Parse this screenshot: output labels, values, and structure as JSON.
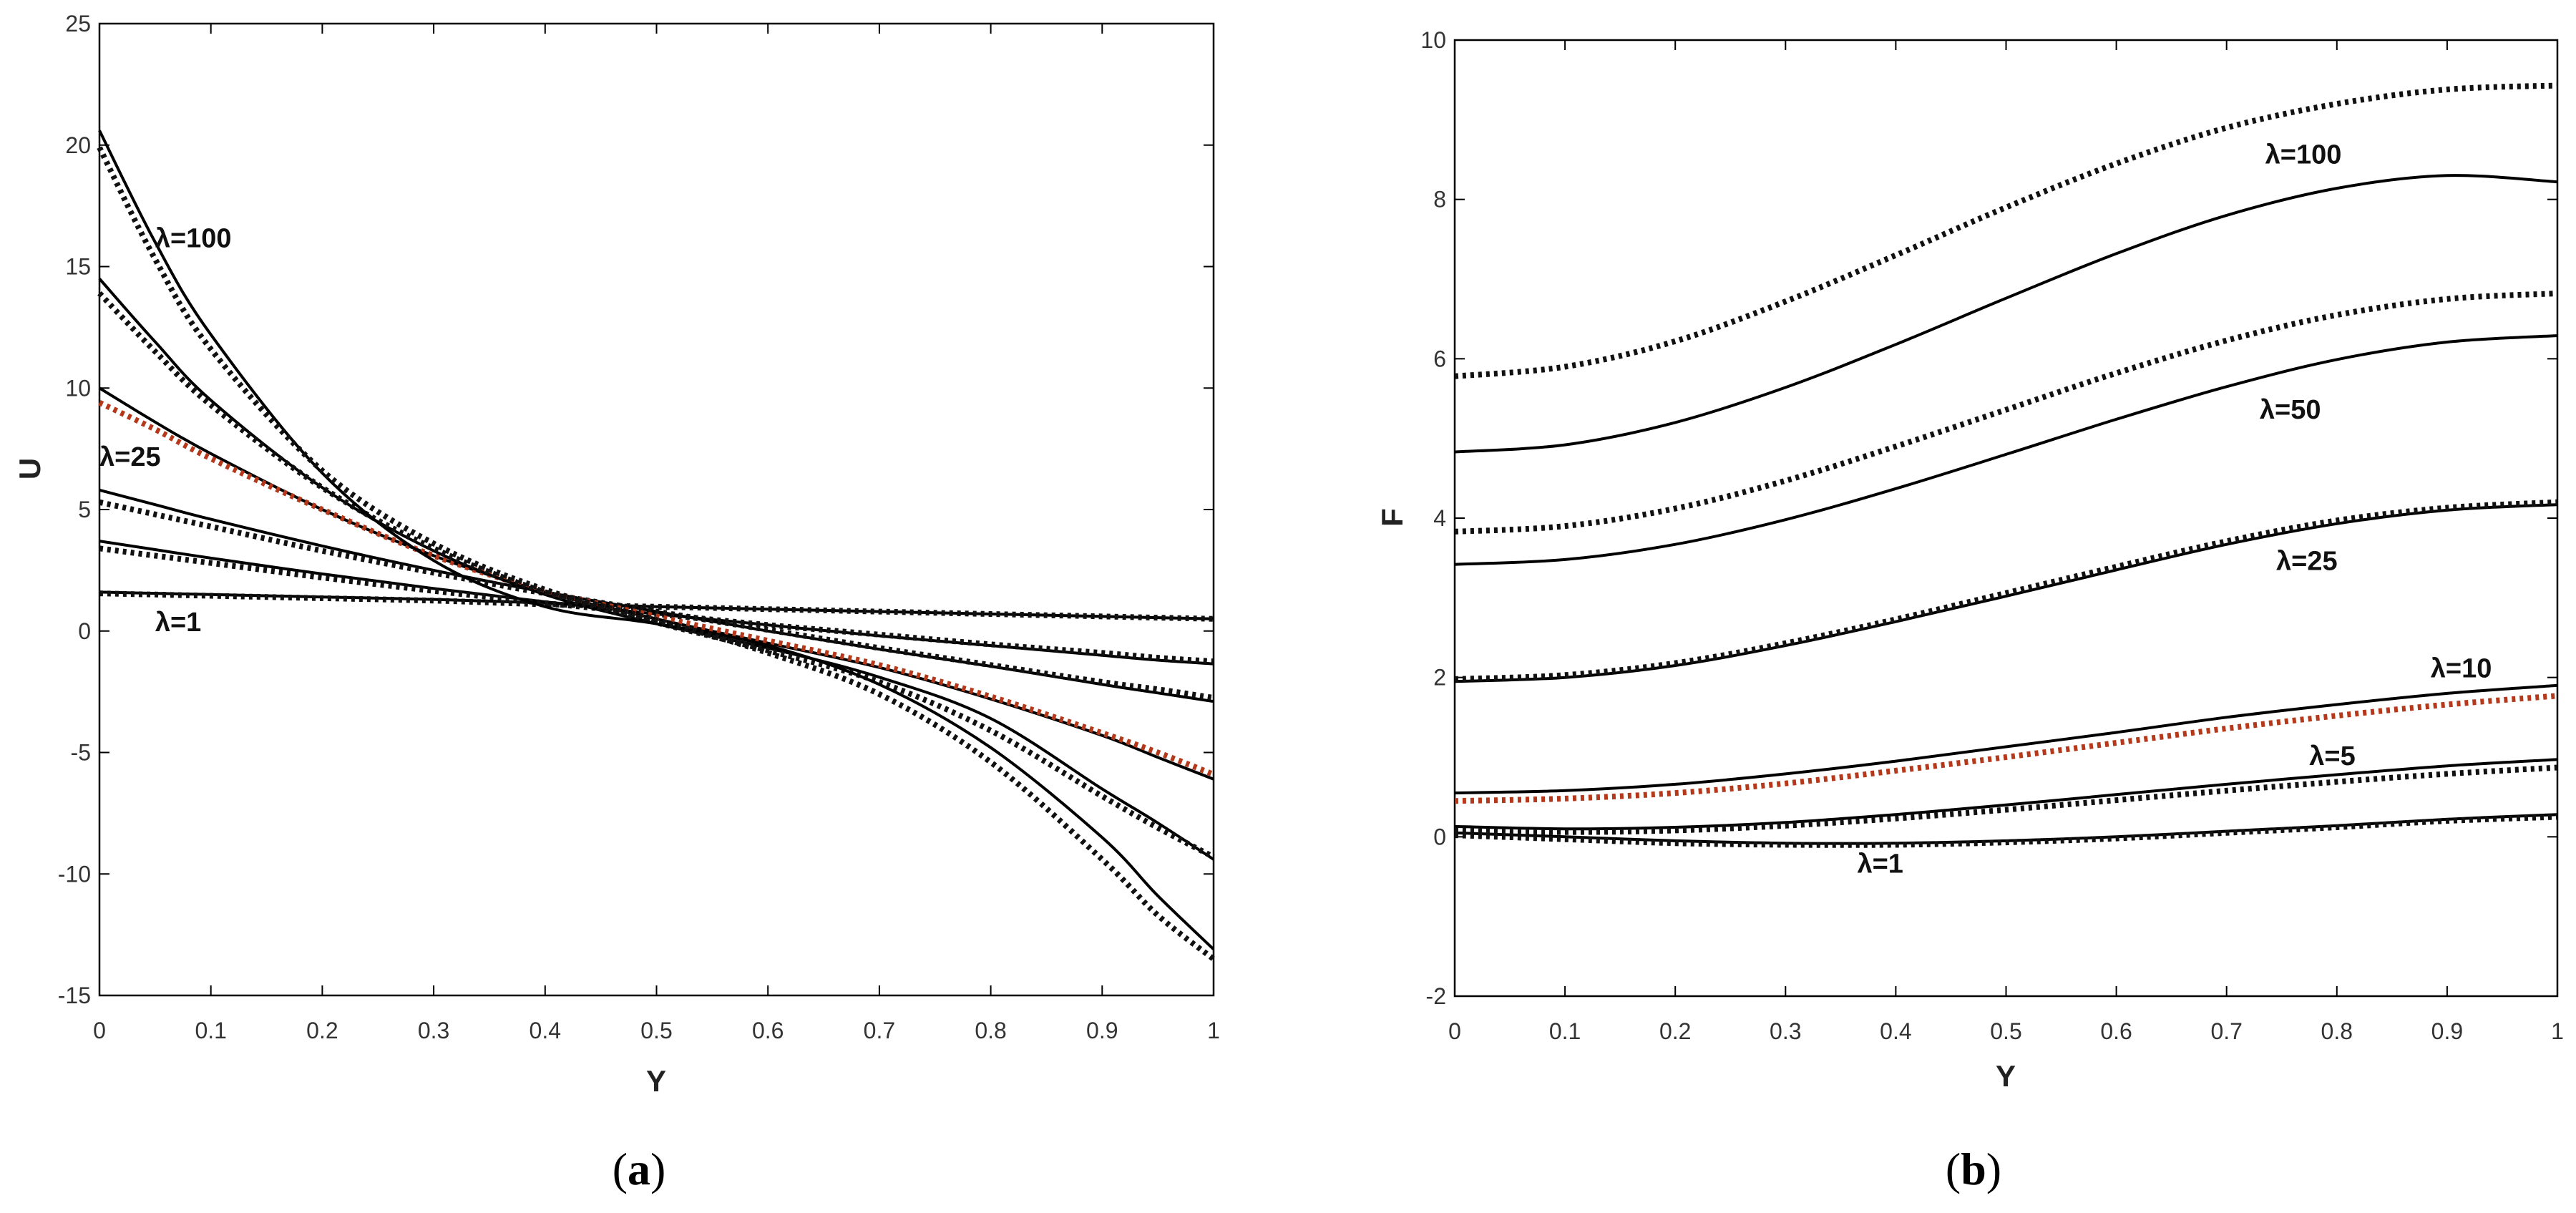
{
  "chart_data": [
    {
      "type": "line",
      "panel_label": [
        "(",
        "a",
        ")"
      ],
      "xlabel": "Y",
      "ylabel": "U",
      "xlim": [
        0,
        1
      ],
      "ylim": [
        -15,
        25
      ],
      "xticks": [
        "0",
        "0.1",
        "0.2",
        "0.3",
        "0.4",
        "0.5",
        "0.6",
        "0.7",
        "0.8",
        "0.9",
        "1"
      ],
      "yticks": [
        "-15",
        "-10",
        "-5",
        "0",
        "5",
        "10",
        "15",
        "20",
        "25"
      ],
      "grid": false,
      "colors": {
        "solid": "#000000",
        "dotted": "#111111",
        "highlight": "#b5381a"
      },
      "annotations": [
        {
          "text": "λ=100",
          "x": 0.05,
          "y": 15.8
        },
        {
          "text": "λ=25",
          "x": 0.0,
          "y": 6.8
        },
        {
          "text": "λ=1",
          "x": 0.05,
          "y": 0.0
        }
      ],
      "series": [
        {
          "style": "solid",
          "x": [
            0,
            0.05,
            0.1,
            0.2,
            0.3,
            0.4,
            0.5,
            0.6,
            0.7,
            0.8,
            0.9,
            0.95,
            1
          ],
          "y": [
            1.6,
            1.55,
            1.5,
            1.4,
            1.3,
            1.15,
            1.0,
            0.9,
            0.8,
            0.7,
            0.6,
            0.55,
            0.5
          ]
        },
        {
          "style": "dotted",
          "x": [
            0,
            0.05,
            0.1,
            0.2,
            0.3,
            0.4,
            0.5,
            0.6,
            0.7,
            0.8,
            0.9,
            0.95,
            1
          ],
          "y": [
            1.55,
            1.5,
            1.45,
            1.35,
            1.25,
            1.1,
            1.0,
            0.9,
            0.8,
            0.7,
            0.6,
            0.55,
            0.5
          ]
        },
        {
          "style": "solid",
          "x": [
            0,
            0.05,
            0.1,
            0.2,
            0.3,
            0.4,
            0.5,
            0.6,
            0.7,
            0.8,
            0.9,
            0.95,
            1
          ],
          "y": [
            3.7,
            3.35,
            3.0,
            2.35,
            1.75,
            1.2,
            0.7,
            0.25,
            -0.2,
            -0.6,
            -1.0,
            -1.2,
            -1.35
          ]
        },
        {
          "style": "dotted",
          "x": [
            0,
            0.05,
            0.1,
            0.2,
            0.3,
            0.4,
            0.5,
            0.6,
            0.7,
            0.8,
            0.9,
            0.95,
            1
          ],
          "y": [
            3.4,
            3.1,
            2.8,
            2.2,
            1.65,
            1.15,
            0.7,
            0.25,
            -0.15,
            -0.55,
            -0.9,
            -1.1,
            -1.25
          ]
        },
        {
          "style": "solid",
          "x": [
            0,
            0.05,
            0.1,
            0.2,
            0.3,
            0.4,
            0.5,
            0.6,
            0.7,
            0.8,
            0.9,
            0.95,
            1
          ],
          "y": [
            5.8,
            5.2,
            4.6,
            3.5,
            2.5,
            1.6,
            0.8,
            0.0,
            -0.75,
            -1.45,
            -2.2,
            -2.55,
            -2.9
          ]
        },
        {
          "style": "dotted",
          "x": [
            0,
            0.05,
            0.1,
            0.2,
            0.3,
            0.4,
            0.5,
            0.6,
            0.7,
            0.8,
            0.9,
            0.95,
            1
          ],
          "y": [
            5.3,
            4.8,
            4.3,
            3.3,
            2.4,
            1.55,
            0.8,
            0.05,
            -0.7,
            -1.4,
            -2.1,
            -2.4,
            -2.75
          ]
        },
        {
          "style": "solid",
          "x": [
            0,
            0.05,
            0.1,
            0.2,
            0.3,
            0.4,
            0.5,
            0.6,
            0.7,
            0.8,
            0.9,
            0.95,
            1
          ],
          "y": [
            10.0,
            8.6,
            7.3,
            5.0,
            3.1,
            1.6,
            0.5,
            -0.5,
            -1.5,
            -2.8,
            -4.3,
            -5.2,
            -6.1
          ]
        },
        {
          "style": "highlight",
          "x": [
            0,
            0.05,
            0.1,
            0.2,
            0.3,
            0.4,
            0.5,
            0.6,
            0.7,
            0.8,
            0.9,
            0.95,
            1
          ],
          "y": [
            9.4,
            8.3,
            7.1,
            5.0,
            3.1,
            1.65,
            0.6,
            -0.4,
            -1.4,
            -2.7,
            -4.2,
            -5.0,
            -5.9
          ]
        },
        {
          "style": "solid",
          "x": [
            0,
            0.05,
            0.1,
            0.2,
            0.3,
            0.4,
            0.5,
            0.6,
            0.7,
            0.8,
            0.9,
            0.95,
            1
          ],
          "y": [
            14.5,
            11.9,
            9.5,
            5.9,
            3.3,
            1.5,
            0.3,
            -0.7,
            -1.9,
            -3.6,
            -6.5,
            -7.9,
            -9.4
          ]
        },
        {
          "style": "dotted",
          "x": [
            0,
            0.05,
            0.1,
            0.2,
            0.3,
            0.4,
            0.5,
            0.6,
            0.7,
            0.8,
            0.9,
            0.95,
            1
          ],
          "y": [
            13.9,
            11.5,
            9.3,
            5.9,
            3.4,
            1.6,
            0.35,
            -0.8,
            -2.1,
            -4.1,
            -6.8,
            -8.1,
            -9.3
          ]
        },
        {
          "style": "solid",
          "x": [
            0,
            0.05,
            0.1,
            0.2,
            0.3,
            0.4,
            0.5,
            0.6,
            0.7,
            0.8,
            0.9,
            0.95,
            1
          ],
          "y": [
            20.6,
            16.0,
            12.2,
            6.5,
            2.9,
            1.0,
            0.3,
            -0.6,
            -2.2,
            -4.8,
            -8.5,
            -10.9,
            -13.1
          ]
        },
        {
          "style": "dotted",
          "x": [
            0,
            0.05,
            0.1,
            0.2,
            0.3,
            0.4,
            0.5,
            0.6,
            0.7,
            0.8,
            0.9,
            0.95,
            1
          ],
          "y": [
            19.9,
            15.3,
            11.6,
            6.6,
            3.6,
            1.7,
            0.45,
            -0.9,
            -2.6,
            -5.4,
            -9.4,
            -11.7,
            -13.5
          ]
        }
      ]
    },
    {
      "type": "line",
      "panel_label": [
        "(",
        "b",
        ")"
      ],
      "xlabel": "Y",
      "ylabel": "F",
      "xlim": [
        0,
        1
      ],
      "ylim": [
        -2,
        10
      ],
      "xticks": [
        "0",
        "0.1",
        "0.2",
        "0.3",
        "0.4",
        "0.5",
        "0.6",
        "0.7",
        "0.8",
        "0.9",
        "1"
      ],
      "yticks": [
        "-2",
        "0",
        "2",
        "4",
        "6",
        "8",
        "10"
      ],
      "grid": false,
      "colors": {
        "solid": "#000000",
        "dotted": "#111111",
        "highlight": "#b5381a"
      },
      "annotations": [
        {
          "text": "λ=100",
          "x": 0.735,
          "y": 8.45
        },
        {
          "text": "λ=50",
          "x": 0.73,
          "y": 5.25
        },
        {
          "text": "λ=25",
          "x": 0.745,
          "y": 3.35
        },
        {
          "text": "λ=10",
          "x": 0.885,
          "y": 2.0
        },
        {
          "text": "λ=5",
          "x": 0.775,
          "y": 0.9
        },
        {
          "text": "λ=1",
          "x": 0.365,
          "y": -0.45
        }
      ],
      "series": [
        {
          "style": "solid",
          "x": [
            0,
            0.1,
            0.2,
            0.3,
            0.4,
            0.5,
            0.6,
            0.7,
            0.8,
            0.9,
            1
          ],
          "y": [
            0.05,
            0.0,
            -0.05,
            -0.08,
            -0.08,
            -0.05,
            0.0,
            0.07,
            0.14,
            0.22,
            0.28
          ]
        },
        {
          "style": "dotted",
          "x": [
            0,
            0.1,
            0.2,
            0.3,
            0.4,
            0.5,
            0.6,
            0.7,
            0.8,
            0.9,
            1
          ],
          "y": [
            0.02,
            -0.03,
            -0.08,
            -0.1,
            -0.1,
            -0.07,
            -0.02,
            0.05,
            0.12,
            0.2,
            0.25
          ]
        },
        {
          "style": "solid",
          "x": [
            0,
            0.1,
            0.2,
            0.3,
            0.4,
            0.5,
            0.6,
            0.7,
            0.8,
            0.9,
            1
          ],
          "y": [
            0.13,
            0.1,
            0.12,
            0.18,
            0.28,
            0.4,
            0.53,
            0.66,
            0.78,
            0.89,
            0.97
          ]
        },
        {
          "style": "dotted",
          "x": [
            0,
            0.1,
            0.2,
            0.3,
            0.4,
            0.5,
            0.6,
            0.7,
            0.8,
            0.9,
            1
          ],
          "y": [
            0.08,
            0.06,
            0.08,
            0.14,
            0.23,
            0.34,
            0.46,
            0.58,
            0.69,
            0.79,
            0.87
          ]
        },
        {
          "style": "solid",
          "x": [
            0,
            0.1,
            0.2,
            0.3,
            0.4,
            0.5,
            0.6,
            0.7,
            0.8,
            0.9,
            1
          ],
          "y": [
            0.55,
            0.58,
            0.66,
            0.79,
            0.95,
            1.13,
            1.31,
            1.5,
            1.66,
            1.8,
            1.9
          ]
        },
        {
          "style": "highlight",
          "x": [
            0,
            0.1,
            0.2,
            0.3,
            0.4,
            0.5,
            0.6,
            0.7,
            0.8,
            0.9,
            1
          ],
          "y": [
            0.45,
            0.48,
            0.55,
            0.67,
            0.83,
            1.0,
            1.18,
            1.36,
            1.52,
            1.66,
            1.77
          ]
        },
        {
          "style": "solid",
          "x": [
            0,
            0.1,
            0.2,
            0.3,
            0.4,
            0.5,
            0.6,
            0.7,
            0.8,
            0.9,
            1
          ],
          "y": [
            1.95,
            2.0,
            2.15,
            2.4,
            2.7,
            3.02,
            3.35,
            3.67,
            3.93,
            4.1,
            4.17
          ]
        },
        {
          "style": "dotted",
          "x": [
            0,
            0.1,
            0.2,
            0.3,
            0.4,
            0.5,
            0.6,
            0.7,
            0.8,
            0.9,
            1
          ],
          "y": [
            1.98,
            2.03,
            2.18,
            2.43,
            2.73,
            3.06,
            3.39,
            3.71,
            3.97,
            4.13,
            4.2
          ]
        },
        {
          "style": "solid",
          "x": [
            0,
            0.1,
            0.2,
            0.3,
            0.4,
            0.5,
            0.6,
            0.7,
            0.8,
            0.9,
            1
          ],
          "y": [
            3.42,
            3.48,
            3.67,
            3.98,
            4.37,
            4.8,
            5.24,
            5.65,
            5.99,
            6.21,
            6.29
          ]
        },
        {
          "style": "dotted",
          "x": [
            0,
            0.1,
            0.2,
            0.3,
            0.4,
            0.5,
            0.6,
            0.7,
            0.8,
            0.9,
            1
          ],
          "y": [
            3.83,
            3.9,
            4.12,
            4.47,
            4.9,
            5.36,
            5.82,
            6.23,
            6.55,
            6.75,
            6.82
          ]
        },
        {
          "style": "solid",
          "x": [
            0,
            0.1,
            0.2,
            0.3,
            0.4,
            0.5,
            0.6,
            0.7,
            0.8,
            0.9,
            1
          ],
          "y": [
            4.83,
            4.92,
            5.2,
            5.64,
            6.18,
            6.76,
            7.32,
            7.8,
            8.14,
            8.3,
            8.22
          ]
        },
        {
          "style": "dotted",
          "x": [
            0,
            0.1,
            0.2,
            0.3,
            0.4,
            0.5,
            0.6,
            0.7,
            0.8,
            0.9,
            1
          ],
          "y": [
            5.78,
            5.9,
            6.22,
            6.72,
            7.3,
            7.9,
            8.45,
            8.9,
            9.2,
            9.38,
            9.43
          ]
        }
      ]
    }
  ]
}
